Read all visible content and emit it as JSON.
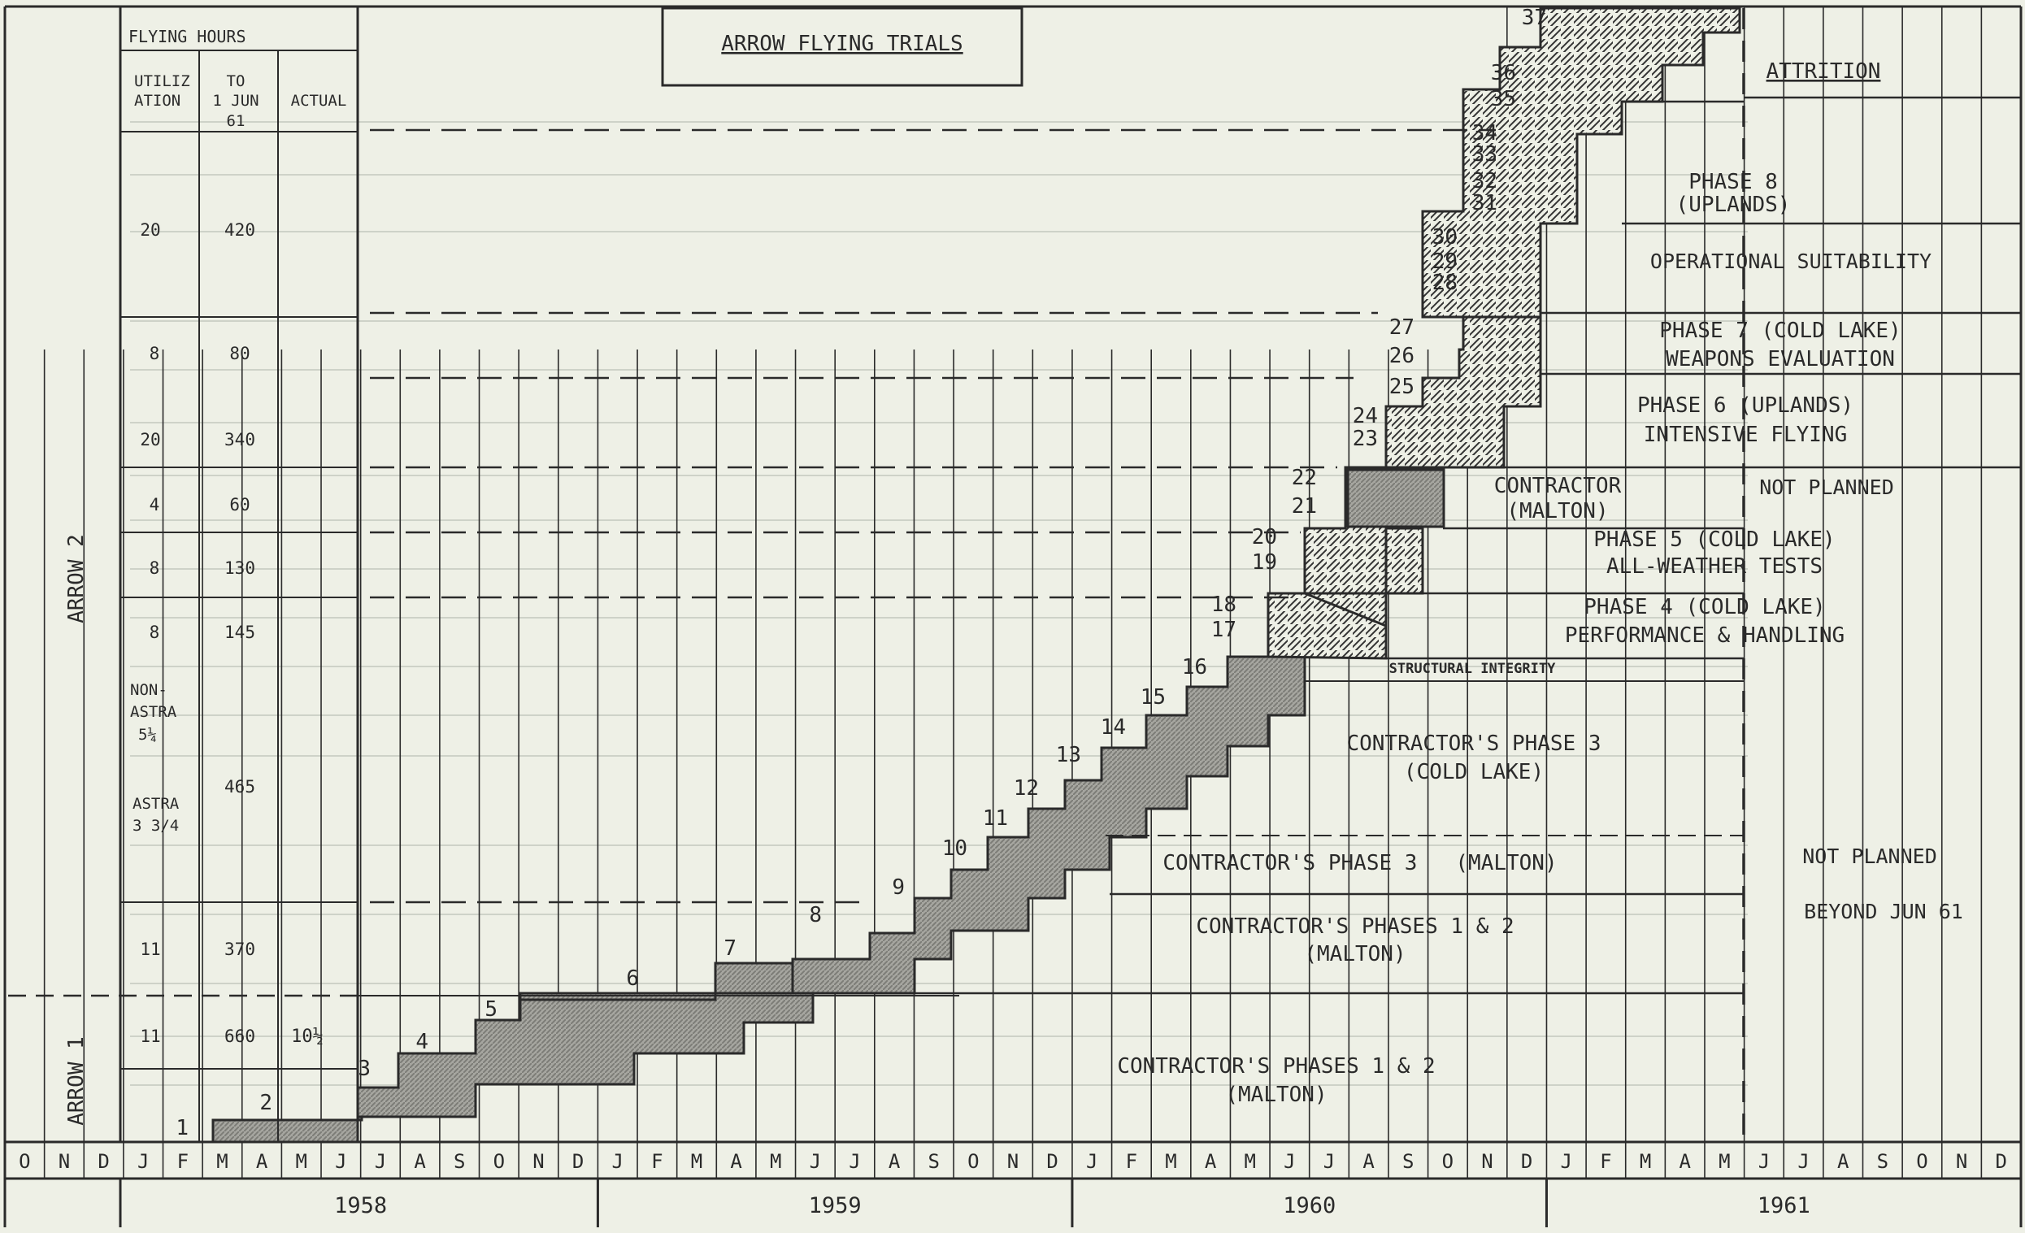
{
  "title": "ARROW FLYING TRIALS",
  "hours_header": {
    "title": "FLYING HOURS",
    "col_utilization": [
      "UTILIZ",
      "ATION"
    ],
    "col_to": [
      "TO",
      "1 JUN",
      "61"
    ],
    "col_actual": "ACTUAL"
  },
  "group_labels": {
    "arrow2": "ARROW 2",
    "arrow1": "ARROW 1"
  },
  "hours_rows": [
    {
      "util": "20",
      "to": "420",
      "actual": ""
    },
    {
      "util": "8",
      "to": "80",
      "actual": ""
    },
    {
      "util": "20",
      "to": "340",
      "actual": ""
    },
    {
      "util": "4",
      "to": "60",
      "actual": ""
    },
    {
      "util": "8",
      "to": "130",
      "actual": ""
    },
    {
      "util": "8",
      "to": "145",
      "actual": ""
    },
    {
      "util_lines": [
        "NON-",
        "ASTRA",
        "5¼",
        "",
        "",
        "ASTRA",
        "3 3/4"
      ],
      "to": "465",
      "actual": ""
    },
    {
      "util": "11",
      "to": "370",
      "actual": ""
    },
    {
      "util": "11",
      "to": "660",
      "actual": "10½"
    }
  ],
  "months": [
    "O",
    "N",
    "D",
    "J",
    "F",
    "M",
    "A",
    "M",
    "J",
    "J",
    "A",
    "S",
    "O",
    "N",
    "D",
    "J",
    "F",
    "M",
    "A",
    "M",
    "J",
    "J",
    "A",
    "S",
    "O",
    "N",
    "D",
    "J",
    "F",
    "M",
    "A",
    "M",
    "J",
    "J",
    "A",
    "S",
    "O",
    "N",
    "D",
    "J",
    "F",
    "M",
    "A",
    "M",
    "J",
    "J",
    "A",
    "S",
    "O",
    "N",
    "D"
  ],
  "years": [
    "1958",
    "1959",
    "1960",
    "1961"
  ],
  "phases": [
    {
      "lines": [
        "ATTRITION"
      ]
    },
    {
      "lines": [
        "PHASE 8",
        "(UPLANDS)"
      ]
    },
    {
      "lines": [
        "OPERATIONAL SUITABILITY"
      ]
    },
    {
      "lines": [
        "PHASE 7 (COLD LAKE)",
        "WEAPONS EVALUATION"
      ]
    },
    {
      "lines": [
        "PHASE 6 (UPLANDS)",
        "INTENSIVE FLYING"
      ]
    },
    {
      "lines": [
        "CONTRACTOR",
        "(MALTON)"
      ]
    },
    {
      "lines": [
        "NOT PLANNED"
      ]
    },
    {
      "lines": [
        "PHASE 5 (COLD LAKE)",
        "ALL-WEATHER TESTS"
      ]
    },
    {
      "lines": [
        "PHASE 4 (COLD LAKE)",
        "PERFORMANCE & HANDLING"
      ]
    },
    {
      "lines": [
        "STRUCTURAL INTEGRITY"
      ]
    },
    {
      "lines": [
        "CONTRACTOR'S PHASE 3",
        "(COLD LAKE)"
      ]
    },
    {
      "lines": [
        "CONTRACTOR'S PHASE 3   (MALTON)"
      ]
    },
    {
      "lines": [
        "CONTRACTOR'S PHASES 1 & 2",
        "(MALTON)"
      ]
    },
    {
      "lines": [
        "CONTRACTOR'S PHASES 1 & 2",
        "(MALTON)"
      ]
    },
    {
      "lines": [
        "NOT PLANNED",
        "",
        "BEYOND JUN 61"
      ]
    }
  ],
  "numbers": [
    "1",
    "2",
    "3",
    "4",
    "5",
    "6",
    "7",
    "8",
    "9",
    "10",
    "11",
    "12",
    "13",
    "14",
    "15",
    "16",
    "17",
    "18",
    "19",
    "20",
    "21",
    "22",
    "23",
    "24",
    "25",
    "26",
    "27",
    "28",
    "29",
    "30",
    "31",
    "32",
    "33",
    "34",
    "35",
    "36",
    "37"
  ],
  "colors": {
    "paper": "#eef0e6",
    "ink": "#2a2a2a",
    "faint": "#b9bcb3",
    "shade": "#8a8a84"
  }
}
